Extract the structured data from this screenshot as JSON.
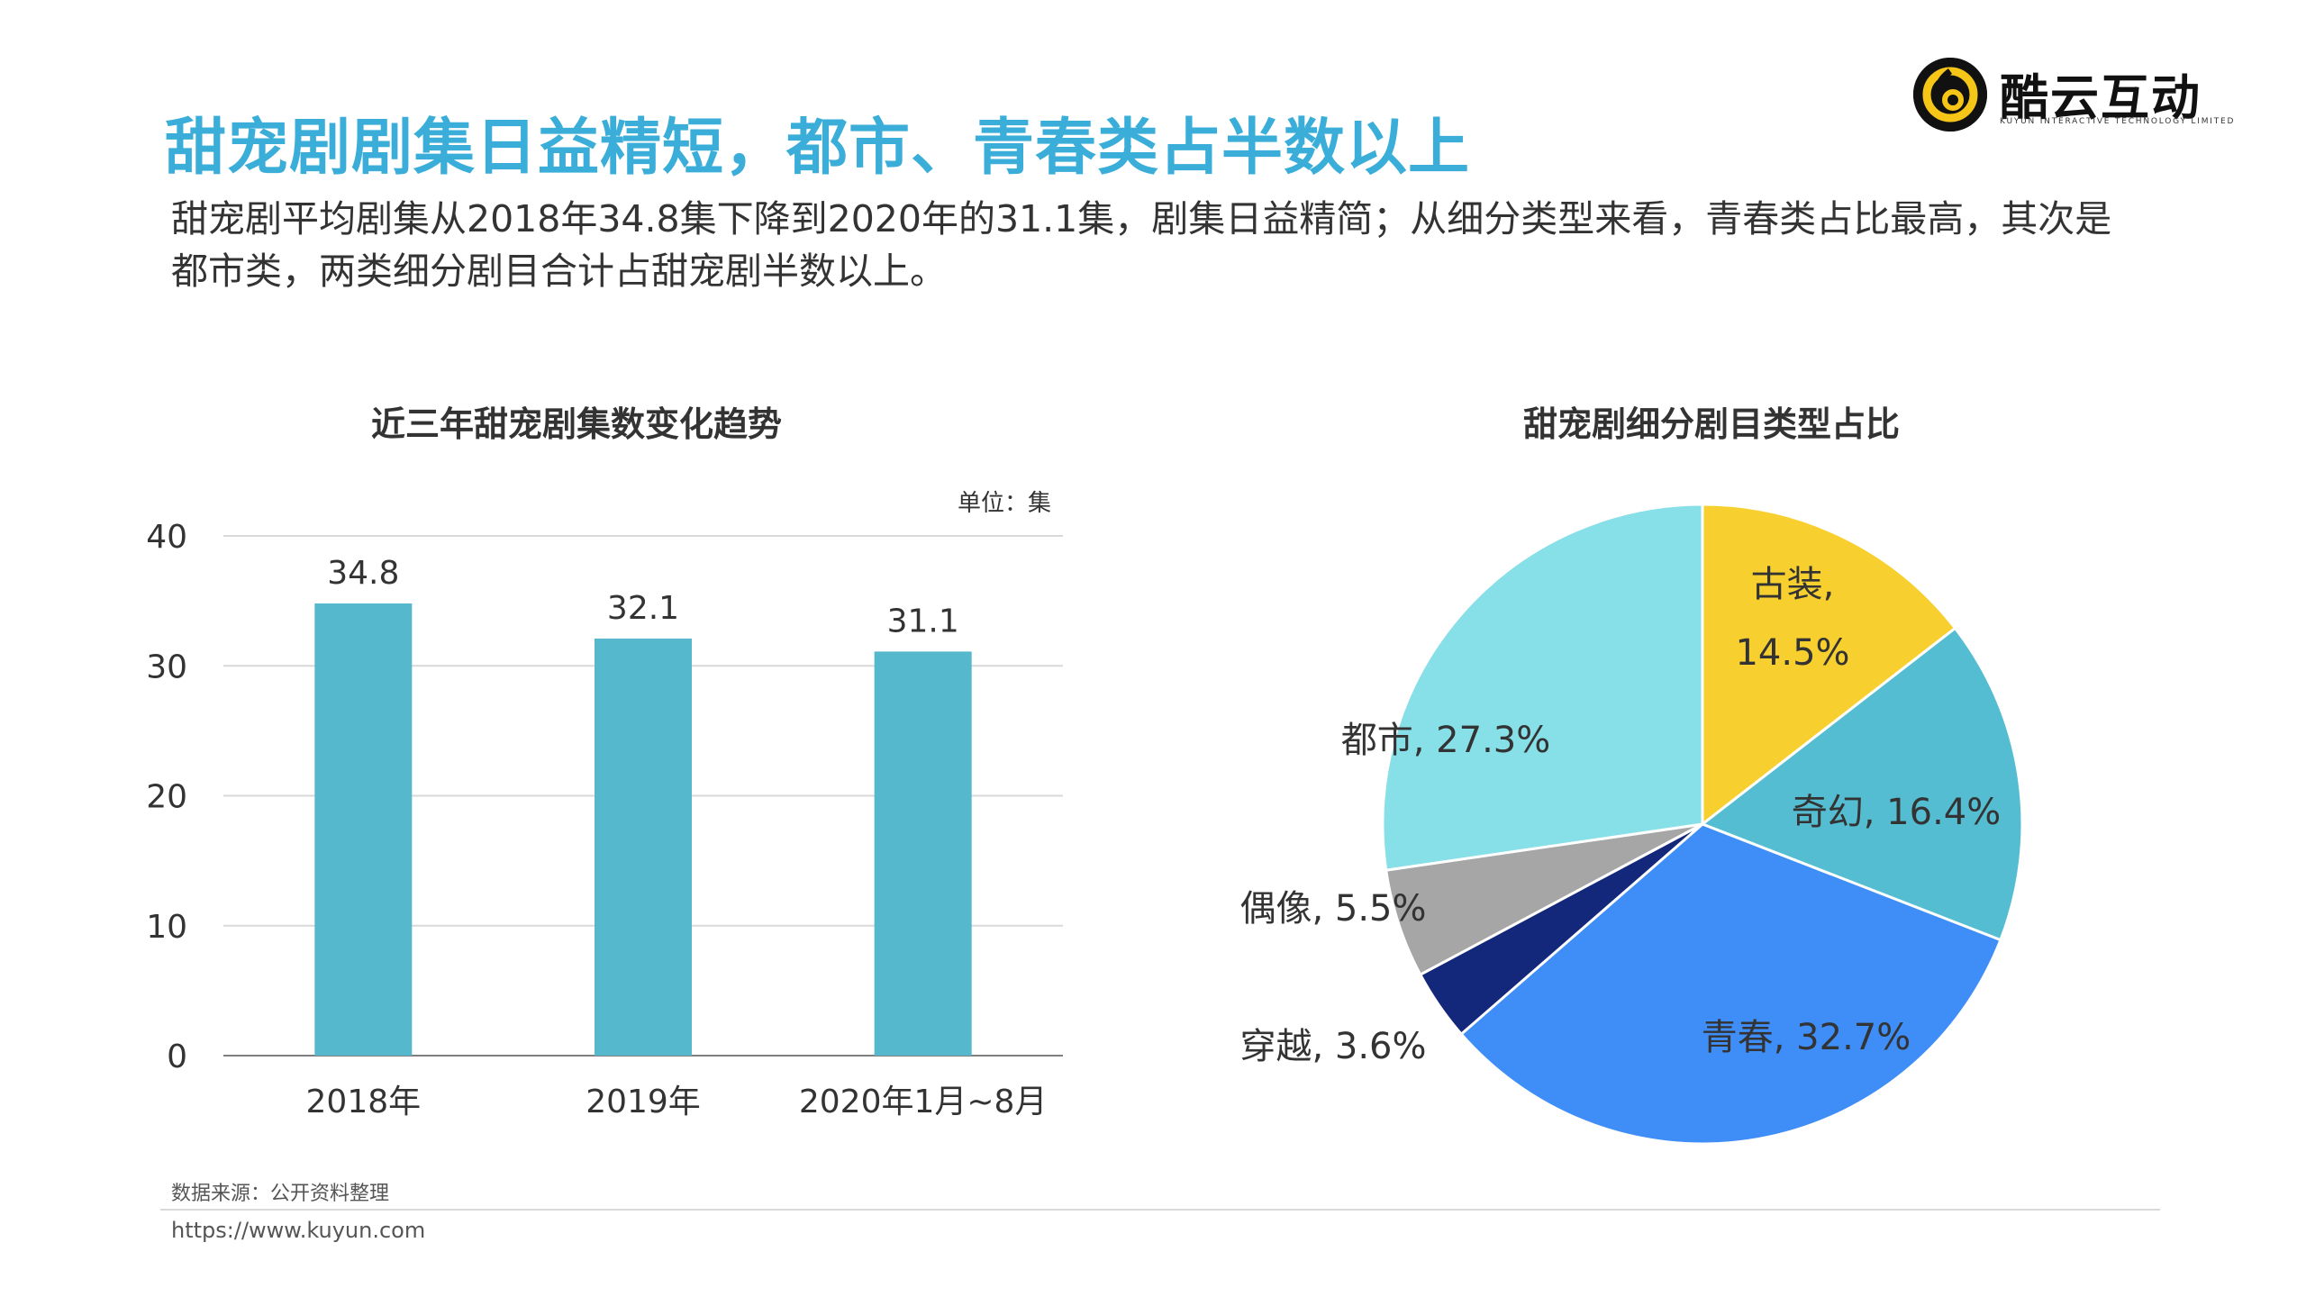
{
  "headline": "甜宠剧剧集日益精短，都市、青春类占半数以上",
  "subtitle": "甜宠剧平均剧集从2018年34.8集下降到2020年的31.1集，剧集日益精简；从细分类型来看，青春类占比最高，其次是都市类，两类细分剧目合计占甜宠剧半数以上。",
  "logo": {
    "name": "酷云互动",
    "subtitle": "KUYUN INTERACTIVE TECHNOLOGY LIMITED",
    "mark_color": "#f5c518",
    "icon": "kuyun-logo-icon"
  },
  "bar_chart": {
    "title": "近三年甜宠剧集数变化趋势",
    "unit": "单位：集",
    "bar_color": "#55b8cc"
  },
  "pie_chart": {
    "title": "甜宠剧细分剧目类型占比"
  },
  "chart_data": [
    {
      "type": "bar",
      "title": "近三年甜宠剧集数变化趋势",
      "categories": [
        "2018年",
        "2019年",
        "2020年1月~8月"
      ],
      "values": [
        34.8,
        32.1,
        31.1
      ],
      "value_labels": [
        "34.8",
        "32.1",
        "31.1"
      ],
      "ylim": [
        0,
        40
      ],
      "yticks": [
        0,
        10,
        20,
        30,
        40
      ],
      "grid": true,
      "ylabel": "单位：集"
    },
    {
      "type": "pie",
      "title": "甜宠剧细分剧目类型占比",
      "slices": [
        {
          "name": "古装",
          "value": 14.5,
          "label": "古装,",
          "label2": "14.5%",
          "color": "#f7d02f"
        },
        {
          "name": "奇幻",
          "value": 16.4,
          "label": "奇幻, 16.4%",
          "color": "#55bdd2"
        },
        {
          "name": "青春",
          "value": 32.7,
          "label": "青春, 32.7%",
          "color": "#3f8ef7"
        },
        {
          "name": "穿越",
          "value": 3.6,
          "label": "穿越, 3.6%",
          "color": "#13287a"
        },
        {
          "name": "偶像",
          "value": 5.5,
          "label": "偶像, 5.5%",
          "color": "#a6a6a6"
        },
        {
          "name": "都市",
          "value": 27.3,
          "label": "都市, 27.3%",
          "color": "#87dfe7"
        }
      ],
      "start_angle_deg": 0,
      "direction": "clockwise"
    }
  ],
  "footer": {
    "source": "数据来源：公开资料整理",
    "url": "https://www.kuyun.com"
  }
}
